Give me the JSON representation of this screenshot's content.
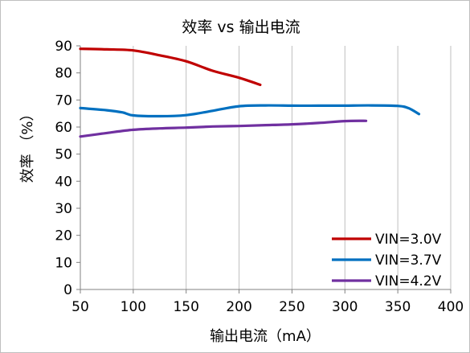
{
  "chart_data": {
    "type": "line",
    "title": "效率 vs 输出电流",
    "xlabel": "输出电流（mA）",
    "ylabel": "效率 （%）",
    "xlim": [
      50,
      400
    ],
    "ylim": [
      0,
      90
    ],
    "x_ticks": [
      50,
      100,
      150,
      200,
      250,
      300,
      350,
      400
    ],
    "y_ticks": [
      0,
      10,
      20,
      30,
      40,
      50,
      60,
      70,
      80,
      90
    ],
    "grid": "vertical",
    "legend_position": "bottom-right",
    "series": [
      {
        "name": "VIN=3.0V",
        "color": "#c00000",
        "x": [
          50,
          75,
          100,
          125,
          150,
          175,
          200,
          220
        ],
        "y": [
          88.9,
          88.7,
          88.3,
          86.5,
          84.3,
          80.8,
          78.2,
          75.6
        ]
      },
      {
        "name": "VIN=3.7V",
        "color": "#0070c0",
        "x": [
          50,
          75,
          90,
          100,
          125,
          150,
          175,
          200,
          225,
          250,
          275,
          300,
          325,
          350,
          360,
          370
        ],
        "y": [
          67.0,
          66.2,
          65.4,
          64.3,
          64.0,
          64.4,
          66.0,
          67.7,
          68.0,
          67.9,
          67.9,
          67.9,
          68.0,
          67.8,
          67.0,
          64.8
        ]
      },
      {
        "name": "VIN=4.2V",
        "color": "#7030a0",
        "x": [
          50,
          75,
          100,
          125,
          150,
          175,
          200,
          225,
          250,
          275,
          300,
          320
        ],
        "y": [
          56.5,
          57.8,
          59.0,
          59.5,
          59.8,
          60.2,
          60.4,
          60.7,
          61.0,
          61.5,
          62.2,
          62.3
        ]
      }
    ]
  }
}
